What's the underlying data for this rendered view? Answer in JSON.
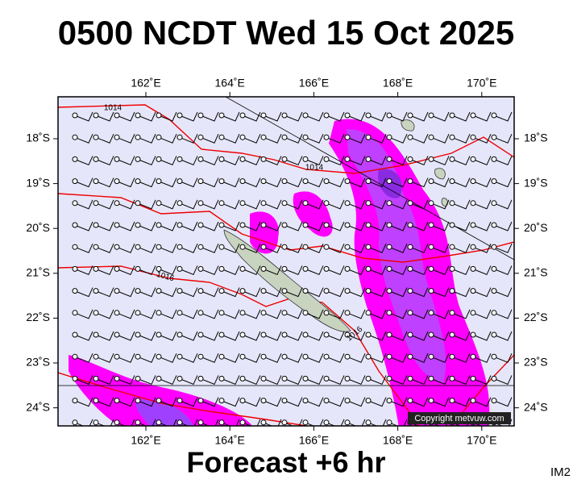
{
  "header": {
    "title": "0500 NCDT Wed 15 Oct 2025"
  },
  "map": {
    "lon_labels": [
      "162˚E",
      "164˚E",
      "166˚E",
      "168˚E",
      "170˚E"
    ],
    "lat_labels": [
      "18˚S",
      "19˚S",
      "20˚S",
      "21˚S",
      "22˚S",
      "23˚S",
      "24˚S"
    ],
    "isobar_labels": [
      "1014",
      "1014",
      "1016",
      "1016"
    ],
    "copyright": "Copyright metvuw.com"
  },
  "footer": {
    "caption": "Forecast +6 hr",
    "code": "IM2"
  }
}
